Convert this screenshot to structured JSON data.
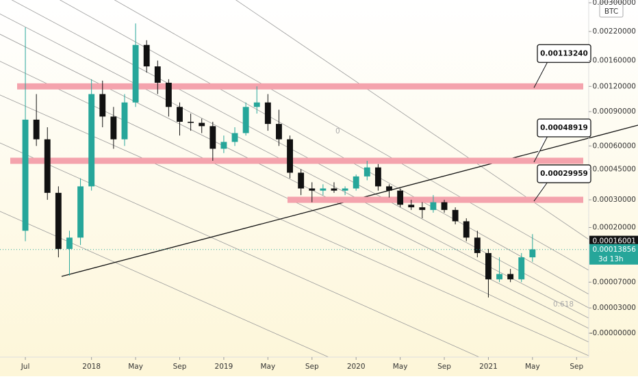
{
  "chart_data": {
    "type": "candlestick",
    "currency": "BTC",
    "log_scale": true,
    "grid": false,
    "up_color": "#26a69a",
    "down_color": "#111111",
    "xlim": [
      3.7,
      57.1
    ],
    "xticks": [
      {
        "value": 6,
        "label": "Jul"
      },
      {
        "value": 12,
        "label": "2018"
      },
      {
        "value": 16,
        "label": "May"
      },
      {
        "value": 20,
        "label": "Sep"
      },
      {
        "value": 24,
        "label": "2019"
      },
      {
        "value": 28,
        "label": "May"
      },
      {
        "value": 32,
        "label": "Sep"
      },
      {
        "value": 36,
        "label": "2020"
      },
      {
        "value": 40,
        "label": "May"
      },
      {
        "value": 44,
        "label": "Sep"
      },
      {
        "value": 48,
        "label": "2021"
      },
      {
        "value": 52,
        "label": "May"
      },
      {
        "value": 56,
        "label": "Sep"
      }
    ],
    "ylim": [
      -2.2e-05,
      0.00309
    ],
    "yticks": [
      {
        "value": 0.003,
        "label": "0.00300000"
      },
      {
        "value": 0.0022,
        "label": "0.00220000"
      },
      {
        "value": 0.0016,
        "label": "0.00160000"
      },
      {
        "value": 0.0012,
        "label": "0.00120000"
      },
      {
        "value": 0.0009,
        "label": "0.00090000"
      },
      {
        "value": 0.0006,
        "label": "0.00060000"
      },
      {
        "value": 0.00045,
        "label": "0.00045000"
      },
      {
        "value": 0.0003,
        "label": "0.00030000"
      },
      {
        "value": 0.0002,
        "label": "0.00020000"
      },
      {
        "value": 7e-05,
        "label": "0.00007000"
      },
      {
        "value": 3e-05,
        "label": "0.00003000"
      },
      {
        "value": 0,
        "label": "-0.00000000"
      }
    ],
    "x": [
      6,
      7,
      8,
      9,
      10,
      11,
      12,
      13,
      14,
      15,
      16,
      17,
      18,
      19,
      20,
      21,
      22,
      23,
      24,
      25,
      26,
      27,
      28,
      29,
      30,
      31,
      32,
      33,
      34,
      35,
      36,
      37,
      38,
      39,
      40,
      41,
      42,
      43,
      44,
      45,
      46,
      47,
      48,
      49,
      50,
      51,
      52
    ],
    "open": [
      0.00019,
      0.00082,
      0.00065,
      0.00033,
      0.00014,
      0.00017,
      0.00036,
      0.0011,
      0.00085,
      0.00065,
      0.001,
      0.0019,
      0.0015,
      0.00125,
      0.00095,
      0.0008,
      0.00079,
      0.00076,
      0.00058,
      0.00063,
      0.0007,
      0.00095,
      0.001,
      0.00078,
      0.00065,
      0.00043,
      0.00035,
      0.00034,
      0.00035,
      0.00034,
      0.00035,
      0.00041,
      0.00046,
      0.00036,
      0.00034,
      0.00028,
      0.00027,
      0.00026,
      0.00029,
      0.00026,
      0.00022,
      0.00017,
      0.00013,
      7.5e-05,
      8.5e-05,
      7.5e-05,
      0.00012
    ],
    "high": [
      0.0023,
      0.0011,
      0.00075,
      0.00036,
      0.00019,
      0.0004,
      0.0013,
      0.00128,
      0.00095,
      0.0011,
      0.0024,
      0.002,
      0.0016,
      0.0013,
      0.001,
      0.00088,
      0.00083,
      0.0008,
      0.00068,
      0.00075,
      0.001,
      0.0012,
      0.0011,
      0.00092,
      0.00068,
      0.00045,
      0.00038,
      0.00037,
      0.00038,
      0.00036,
      0.00042,
      0.0005,
      0.00048,
      0.00037,
      0.00035,
      0.0003,
      0.00029,
      0.00032,
      0.0003,
      0.00027,
      0.00023,
      0.00019,
      0.00014,
      0.00012,
      9.5e-05,
      0.00013,
      0.00018
    ],
    "low": [
      0.00016,
      0.0006,
      0.0003,
      0.00012,
      8.2e-05,
      0.00015,
      0.00034,
      0.00075,
      0.00058,
      0.0006,
      0.00095,
      0.0014,
      0.0011,
      0.00085,
      0.00068,
      0.00072,
      0.0007,
      0.0005,
      0.00055,
      0.0006,
      0.00068,
      0.00088,
      0.00072,
      0.0006,
      0.0004,
      0.00032,
      0.00029,
      0.00032,
      0.00033,
      0.00032,
      0.00034,
      0.00039,
      0.00034,
      0.00031,
      0.00027,
      0.00026,
      0.00023,
      0.00025,
      0.00025,
      0.00021,
      0.00016,
      0.00012,
      4.5e-05,
      7e-05,
      7e-05,
      7e-05,
      0.00011
    ],
    "close": [
      0.00082,
      0.00065,
      0.00033,
      0.00014,
      0.00017,
      0.00036,
      0.0011,
      0.00085,
      0.00065,
      0.001,
      0.0019,
      0.0015,
      0.00125,
      0.00095,
      0.0008,
      0.00079,
      0.00076,
      0.00058,
      0.00063,
      0.0007,
      0.00095,
      0.001,
      0.00078,
      0.00065,
      0.00043,
      0.00035,
      0.00034,
      0.00035,
      0.00034,
      0.00035,
      0.00041,
      0.00046,
      0.00036,
      0.00034,
      0.00028,
      0.00027,
      0.00026,
      0.00029,
      0.00026,
      0.00022,
      0.00017,
      0.00013,
      7.5e-05,
      8.5e-05,
      7.5e-05,
      0.00012,
      0.000139
    ],
    "zones": [
      0.0012,
      0.0005,
      0.0003
    ],
    "callouts": [
      "0.00113240",
      "0.00048919",
      "0.00029959"
    ],
    "price_labels": [
      {
        "value": 0.00016001,
        "label": "0.00016001"
      },
      {
        "value": 0.00013856,
        "label": "0.00013856",
        "countdown": "3d 13h"
      }
    ],
    "annotations": [
      "0",
      "0.618"
    ]
  }
}
